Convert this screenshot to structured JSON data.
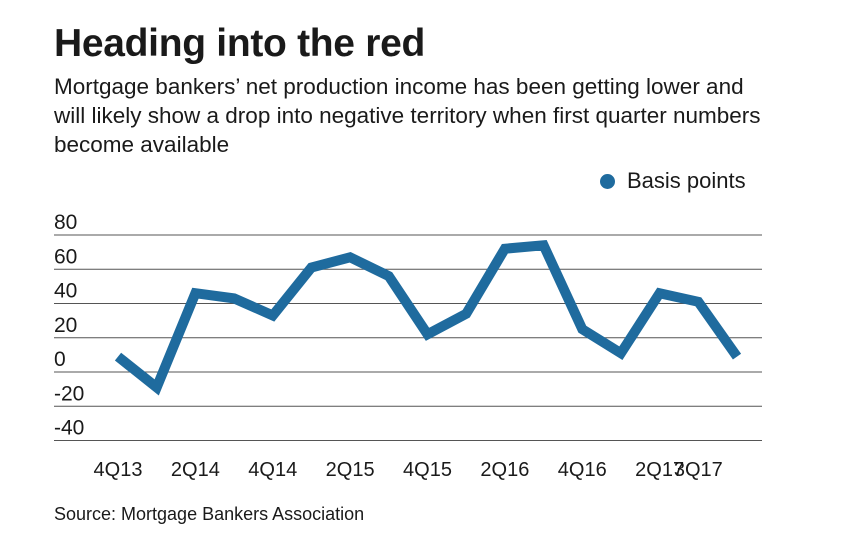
{
  "header": {
    "title": "Heading into the red",
    "subtitle": "Mortgage bankers’ net production income has been getting lower and will likely show a drop into negative territory when first quarter numbers become available"
  },
  "source": "Source: Mortgage Bankers Association",
  "colors": {
    "series": "#1f6b9e",
    "grid": "#555555",
    "text": "#1a1a1a"
  },
  "chart_data": {
    "type": "line",
    "title": "Heading into the red",
    "xlabel": "",
    "ylabel": "",
    "legend_position": "top-right",
    "grid": true,
    "ylim": [
      -40,
      80
    ],
    "yticks": [
      80,
      60,
      40,
      20,
      0,
      -20,
      -40
    ],
    "x": [
      "4Q13",
      "1Q14",
      "2Q14",
      "3Q14",
      "4Q14",
      "1Q15",
      "2Q15",
      "3Q15",
      "4Q15",
      "1Q16",
      "2Q16",
      "3Q16",
      "4Q16",
      "1Q17",
      "2Q17",
      "3Q17",
      "4Q17"
    ],
    "xtick_labels": [
      "4Q13",
      "2Q14",
      "4Q14",
      "2Q15",
      "4Q15",
      "2Q16",
      "4Q16",
      "2Q17",
      "3Q17"
    ],
    "series": [
      {
        "name": "Basis points",
        "values": [
          9,
          -9,
          46,
          43,
          33,
          61,
          67,
          56,
          22,
          34,
          72,
          74,
          25,
          11,
          46,
          41,
          9
        ]
      }
    ]
  }
}
